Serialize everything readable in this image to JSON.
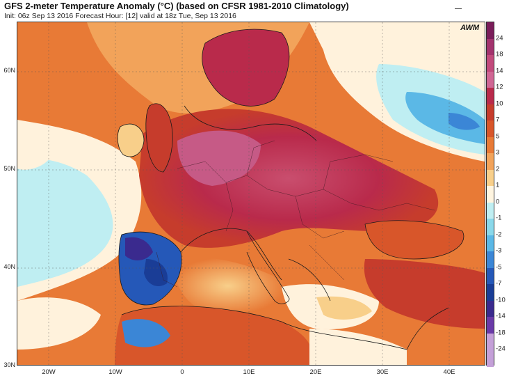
{
  "header": {
    "title": "GFS 2-meter Temperature Anomaly (°C) (based on CFSR 1981-2010 Climatology)",
    "subtitle": "Init: 06z Sep 13 2016   Forecast Hour: [12]   valid at 18z Tue, Sep 13 2016"
  },
  "map": {
    "logo": "AWM",
    "lat_labels": [
      "60N",
      "50N",
      "40N",
      "30N"
    ],
    "lon_labels": [
      "20W",
      "10W",
      "0",
      "10E",
      "20E",
      "30E",
      "40E"
    ]
  },
  "colorbar": {
    "labels": [
      "24",
      "18",
      "14",
      "12",
      "10",
      "7",
      "5",
      "3",
      "2",
      "1",
      "0",
      "-1",
      "-2",
      "-3",
      "-5",
      "-7",
      "-10",
      "-14",
      "-18",
      "-24"
    ],
    "colors": [
      "#7a1d5a",
      "#a3336e",
      "#c24a7c",
      "#d06694",
      "#b92a4b",
      "#c63c2c",
      "#d8562a",
      "#e87a36",
      "#f2a35a",
      "#f8cf8a",
      "#fff5e0",
      "#bfeef2",
      "#8ad8ea",
      "#5bb8e6",
      "#3b86d6",
      "#2558b8",
      "#1a3d96",
      "#3a2a8e",
      "#6a3aa8",
      "#c4a0d8"
    ]
  },
  "palette": {
    "land_hot": "#b92a4b",
    "land_warm": "#d8562a",
    "ocean": "#f2a35a",
    "cool": "#8ad8ea",
    "cold": "#2558b8"
  }
}
